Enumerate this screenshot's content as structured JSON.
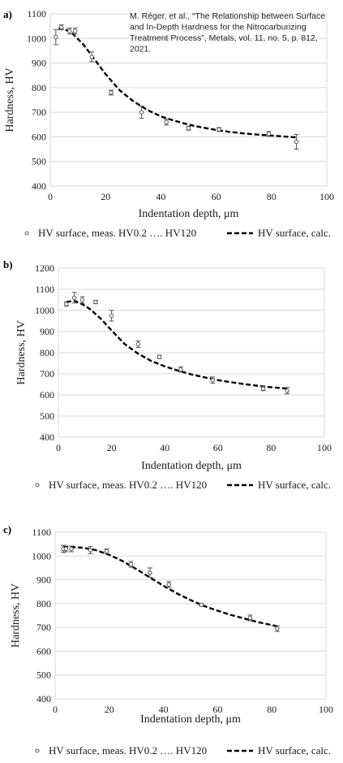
{
  "citation": {
    "line1": "M. Réger, et al., “The Relationship between Surface",
    "line2": "and In-Depth Hardness for the Nitrocarburizing",
    "line3": "Treatment Process”, Metals, vol. 11, no. 5, p. 812,",
    "line4": "2021."
  },
  "chart_data": [
    {
      "panel_label": "a)",
      "type": "scatter",
      "xlabel": "Indentation depth, μm",
      "ylabel": "Hardness, HV",
      "xlim": [
        0,
        100
      ],
      "ylim": [
        400,
        1100
      ],
      "xticks": [
        "0",
        "20",
        "40",
        "60",
        "80",
        "100"
      ],
      "yticks": [
        "400",
        "500",
        "600",
        "700",
        "800",
        "900",
        "1000",
        "1100"
      ],
      "grid": true,
      "legend_position": "bottom",
      "series": [
        {
          "name": "HV surface, meas. HV0.2 …. HV120",
          "kind": "points",
          "x": [
            2,
            4,
            7,
            9,
            15,
            22,
            33,
            42,
            50,
            61,
            79,
            89
          ],
          "y": [
            1005,
            1045,
            1030,
            1030,
            925,
            780,
            700,
            660,
            635,
            630,
            612,
            580
          ],
          "err": [
            30,
            10,
            12,
            12,
            20,
            10,
            25,
            12,
            8,
            8,
            10,
            30
          ]
        },
        {
          "name": "HV surface, calc.",
          "kind": "dashed-line",
          "x": [
            3,
            5,
            8,
            12,
            16,
            20,
            25,
            30,
            35,
            40,
            45,
            50,
            55,
            60,
            65,
            70,
            75,
            80,
            85,
            89
          ],
          "y": [
            1040,
            1040,
            1020,
            975,
            915,
            855,
            790,
            745,
            710,
            683,
            665,
            650,
            638,
            628,
            620,
            614,
            609,
            605,
            601,
            598
          ]
        }
      ]
    },
    {
      "panel_label": "b)",
      "type": "scatter",
      "xlabel": "Indentation depth, μm",
      "ylabel": "Hardness, HV",
      "xlim": [
        0,
        100
      ],
      "ylim": [
        400,
        1200
      ],
      "xticks": [
        "0",
        "20",
        "40",
        "60",
        "80",
        "100"
      ],
      "yticks": [
        "400",
        "500",
        "600",
        "700",
        "800",
        "900",
        "1000",
        "1100",
        "1200"
      ],
      "grid": true,
      "legend_position": "bottom",
      "series": [
        {
          "name": "HV surface, meas. HV0.2 …. HV120",
          "kind": "points",
          "x": [
            3,
            6,
            9,
            14,
            20,
            30,
            38,
            46,
            58,
            77,
            86
          ],
          "y": [
            1030,
            1060,
            1050,
            1040,
            975,
            840,
            780,
            720,
            670,
            630,
            620
          ],
          "err": [
            10,
            25,
            15,
            8,
            25,
            15,
            8,
            12,
            15,
            10,
            15
          ]
        },
        {
          "name": "HV surface, calc.",
          "kind": "dashed-line",
          "x": [
            3,
            6,
            9,
            12,
            16,
            20,
            25,
            30,
            35,
            40,
            45,
            50,
            55,
            60,
            65,
            70,
            75,
            80,
            86
          ],
          "y": [
            1040,
            1045,
            1030,
            1005,
            960,
            905,
            840,
            795,
            760,
            735,
            715,
            697,
            683,
            670,
            660,
            651,
            643,
            636,
            630
          ]
        }
      ]
    },
    {
      "panel_label": "c)",
      "type": "scatter",
      "xlabel": "Indentation depth, μm",
      "ylabel": "Hardness, HV",
      "xlim": [
        0,
        100
      ],
      "ylim": [
        400,
        1100
      ],
      "xticks": [
        "0",
        "20",
        "40",
        "60",
        "80",
        "100"
      ],
      "yticks": [
        "400",
        "500",
        "600",
        "700",
        "800",
        "900",
        "1000",
        "1100"
      ],
      "grid": true,
      "legend_position": "bottom",
      "series": [
        {
          "name": "HV surface, meas. HV0.2 …. HV120",
          "kind": "points",
          "x": [
            3,
            4,
            6,
            13,
            19,
            28,
            35,
            42,
            54,
            72,
            82
          ],
          "y": [
            1030,
            1030,
            1030,
            1025,
            1020,
            965,
            930,
            880,
            795,
            740,
            695
          ],
          "err": [
            15,
            12,
            12,
            15,
            10,
            12,
            20,
            12,
            5,
            12,
            12
          ]
        },
        {
          "name": "HV surface, calc.",
          "kind": "dashed-line",
          "x": [
            3,
            6,
            10,
            15,
            20,
            25,
            30,
            35,
            40,
            45,
            50,
            55,
            60,
            65,
            70,
            75,
            82
          ],
          "y": [
            1040,
            1038,
            1035,
            1025,
            1005,
            978,
            945,
            910,
            875,
            843,
            815,
            790,
            770,
            752,
            737,
            722,
            705
          ]
        }
      ]
    }
  ]
}
